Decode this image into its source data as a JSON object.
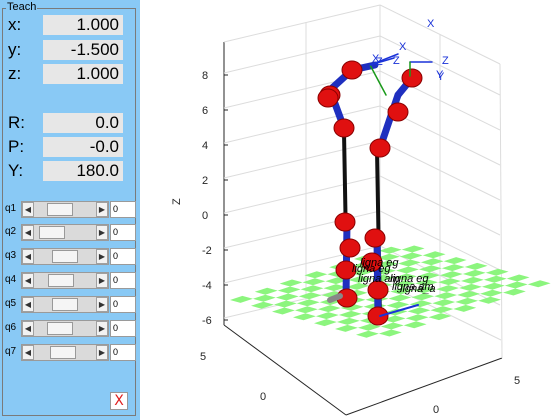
{
  "teach": {
    "title": "Teach",
    "position": [
      {
        "label": "x:",
        "value": "1.000"
      },
      {
        "label": "y:",
        "value": "-1.500"
      },
      {
        "label": "z:",
        "value": "1.000"
      }
    ],
    "orientation": [
      {
        "label": "R:",
        "value": "0.0"
      },
      {
        "label": "P:",
        "value": "-0.0"
      },
      {
        "label": "Y:",
        "value": "180.0"
      }
    ],
    "joints": [
      {
        "label": "q1",
        "value": "0",
        "level": 0.37
      },
      {
        "label": "q2",
        "value": "0",
        "level": 0.15
      },
      {
        "label": "q3",
        "value": "0",
        "level": 0.5
      },
      {
        "label": "q4",
        "value": "0",
        "level": 0.4
      },
      {
        "label": "q5",
        "value": "0",
        "level": 0.5
      },
      {
        "label": "q6",
        "value": "0",
        "level": 0.35
      },
      {
        "label": "q7",
        "value": "0",
        "level": 0.45
      }
    ],
    "exit_glyph": "X",
    "icons": {
      "left_arrow": "arrow-left-icon",
      "right_arrow": "arrow-right-icon",
      "close": "close-icon"
    }
  },
  "plot": {
    "zlabel": "Z",
    "z_ticks": [
      "8",
      "6",
      "4",
      "2",
      "0",
      "-2",
      "-4",
      "-6"
    ],
    "x_ticks": [
      "5",
      "0"
    ],
    "y_ticks": [
      "0",
      "5"
    ],
    "frame_labels": [
      "X",
      "X",
      "Z",
      "Z",
      "Y",
      "X",
      "Z",
      "Y"
    ],
    "tool_labels": [
      "ligna eg",
      "ligna eg",
      "ligna am",
      "ligna eg",
      "ligna_a",
      "ligna am"
    ],
    "colors": {
      "link": "#1f2fbf",
      "joint": "#e01010",
      "pole": "#111111",
      "floor": "#8cf57e",
      "frame": "#1a32d8"
    }
  }
}
